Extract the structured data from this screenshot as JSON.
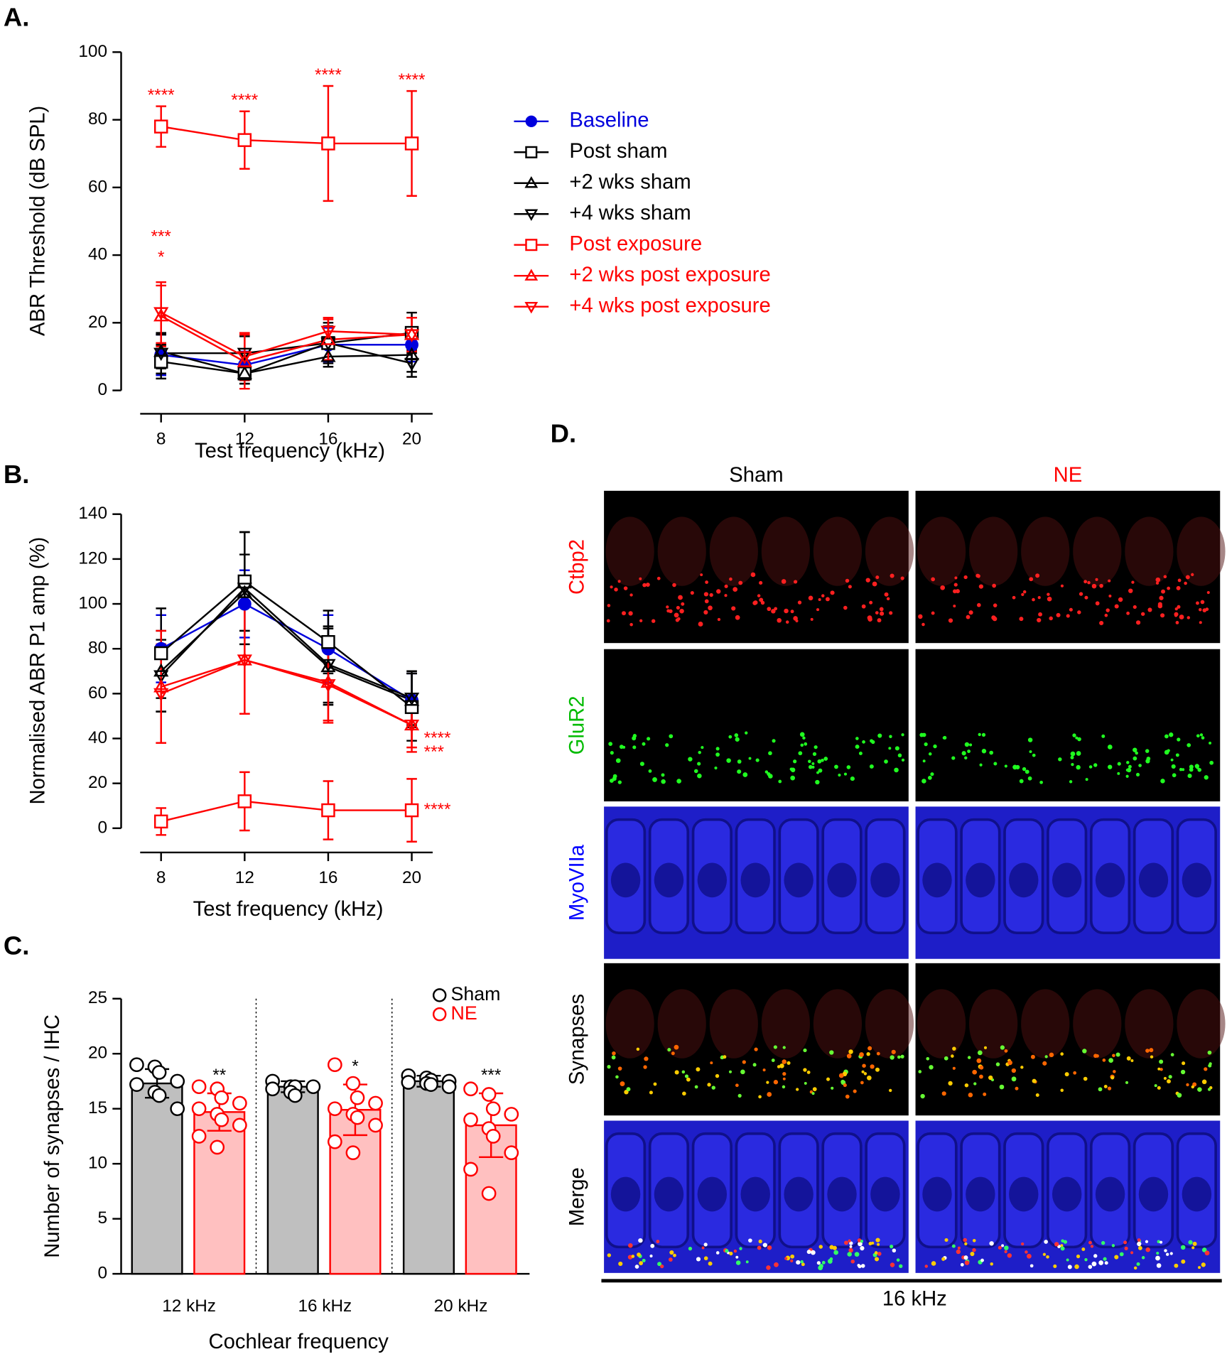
{
  "chart_data": [
    {
      "type": "line",
      "panel_label": "A.",
      "y_label": "ABR Threshold (dB SPL)",
      "x_label": "Test frequency (kHz)",
      "x": [
        8,
        12,
        16,
        20
      ],
      "xlim": [
        7,
        21
      ],
      "xticks": [
        8,
        12,
        16,
        20
      ],
      "ylim": [
        0,
        100
      ],
      "yticks": [
        0,
        20,
        40,
        60,
        80,
        100
      ],
      "legend": "right",
      "series": [
        {
          "name": "Baseline",
          "color": "#0000dd",
          "marker": "circle-filled",
          "values": [
            10.5,
            7.5,
            13.5,
            13.5
          ],
          "errors": [
            6,
            4,
            5,
            5
          ]
        },
        {
          "name": "Post sham",
          "color": "#000000",
          "marker": "square",
          "values": [
            8.5,
            5,
            14,
            17
          ],
          "errors": [
            5,
            3,
            6,
            6
          ]
        },
        {
          "name": "+2 wks sham",
          "color": "#000000",
          "marker": "triangle-up",
          "values": [
            11.5,
            5,
            10,
            10.5
          ],
          "errors": [
            5,
            3,
            3,
            5
          ]
        },
        {
          "name": "+4 wks sham",
          "color": "#000000",
          "marker": "triangle-down",
          "values": [
            11,
            11,
            14,
            8
          ],
          "errors": [
            6,
            5,
            5,
            4
          ]
        },
        {
          "name": "Post exposure",
          "color": "#ff0000",
          "marker": "square",
          "values": [
            78,
            74,
            73,
            73
          ],
          "errors": [
            6,
            8.5,
            17,
            15.5
          ],
          "annotations": [
            "****",
            "****",
            "****",
            "****"
          ],
          "annotation_position": "above"
        },
        {
          "name": "+2 wks post exposure",
          "color": "#ff0000",
          "marker": "triangle-up",
          "values": [
            22,
            8.5,
            15,
            16.5
          ],
          "errors": [
            9,
            8,
            6,
            5
          ],
          "annotations": [
            "*",
            null,
            null,
            null
          ],
          "annotation_position": "above"
        },
        {
          "name": "+4 wks post exposure",
          "color": "#ff0000",
          "marker": "triangle-down",
          "values": [
            23,
            10,
            17.5,
            16.5
          ],
          "errors": [
            9,
            7,
            4,
            5
          ],
          "annotations": [
            "***",
            null,
            null,
            null
          ],
          "annotation_position": "above"
        }
      ]
    },
    {
      "type": "line",
      "panel_label": "B.",
      "y_label": "Normalised ABR P1 amp (%)",
      "x_label": "Test frequency (kHz)",
      "x": [
        8,
        12,
        16,
        20
      ],
      "xlim": [
        7,
        21
      ],
      "xticks": [
        8,
        12,
        16,
        20
      ],
      "ylim": [
        0,
        140
      ],
      "yticks": [
        0,
        20,
        40,
        60,
        80,
        100,
        120,
        140
      ],
      "series": [
        {
          "name": "Baseline",
          "color": "#0000dd",
          "marker": "circle-filled",
          "values": [
            80,
            100,
            80,
            57
          ],
          "errors": [
            15,
            15,
            15,
            12
          ]
        },
        {
          "name": "Post sham",
          "color": "#000000",
          "marker": "square",
          "values": [
            78,
            110,
            83,
            54
          ],
          "errors": [
            20,
            22,
            14,
            15
          ]
        },
        {
          "name": "+2 wks sham",
          "color": "#000000",
          "marker": "triangle-up",
          "values": [
            70,
            105,
            72,
            57
          ],
          "errors": [
            18,
            17,
            17,
            12
          ]
        },
        {
          "name": "+4 wks sham",
          "color": "#000000",
          "marker": "triangle-down",
          "values": [
            68,
            107,
            73,
            58
          ],
          "errors": [
            16,
            25,
            17,
            12
          ]
        },
        {
          "name": "Post exposure",
          "color": "#ff0000",
          "marker": "square",
          "values": [
            3,
            12,
            8,
            8
          ],
          "errors": [
            6,
            13,
            13,
            14
          ],
          "annotations": [
            null,
            null,
            null,
            "****"
          ],
          "annotation_position": "right"
        },
        {
          "name": "+2 wks post exposure",
          "color": "#ff0000",
          "marker": "triangle-up",
          "values": [
            63,
            75,
            65,
            46
          ],
          "errors": [
            25,
            24,
            17,
            12
          ],
          "annotations": [
            null,
            null,
            null,
            "****"
          ],
          "annotation_position": "right"
        },
        {
          "name": "+4 wks post exposure",
          "color": "#ff0000",
          "marker": "triangle-down",
          "values": [
            60,
            75,
            64,
            46
          ],
          "errors": [
            22,
            24,
            17,
            10
          ],
          "annotations": [
            null,
            null,
            null,
            "***"
          ],
          "annotation_position": "right"
        }
      ]
    },
    {
      "type": "bar",
      "panel_label": "C.",
      "y_label": "Number of synapses / IHC",
      "x_label": "Cochlear frequency",
      "categories": [
        "12 kHz",
        "16 kHz",
        "20 kHz"
      ],
      "ylim": [
        0,
        25
      ],
      "yticks": [
        0,
        5,
        10,
        15,
        20,
        25
      ],
      "legend": "top-right",
      "series": [
        {
          "name": "Sham",
          "color": "#000000",
          "fill": "#bfbfbf",
          "values": [
            17.3,
            17.0,
            17.5
          ],
          "errors": [
            1.3,
            0.5,
            0.5
          ],
          "points": [
            [
              19,
              18.8,
              18.3,
              17.5,
              17.2,
              16.5,
              16.2,
              15
            ],
            [
              17.5,
              17,
              17,
              17,
              16.8,
              16.5,
              16.2
            ],
            [
              18,
              17.8,
              17.6,
              17.5,
              17.4,
              17.3,
              17.2,
              17
            ]
          ]
        },
        {
          "name": "NE",
          "color": "#ff0000",
          "fill": "#ffc0c0",
          "values": [
            14.7,
            14.9,
            13.5
          ],
          "errors": [
            1.7,
            2.3,
            2.9
          ],
          "points": [
            [
              17,
              16.8,
              16,
              15.5,
              15,
              14.5,
              14,
              13.5,
              12.5,
              11.5
            ],
            [
              19,
              17.3,
              16,
              15.5,
              15,
              14.5,
              14.2,
              13.5,
              12,
              11
            ],
            [
              16.8,
              16.3,
              15,
              14.5,
              14,
              13.2,
              12.5,
              11,
              9.5,
              7.3
            ]
          ],
          "annotations": [
            "**",
            "*",
            "***"
          ],
          "annotation_position": "above"
        }
      ]
    }
  ],
  "panel_d": {
    "panel_label": "D.",
    "columns": [
      "Sham",
      "NE"
    ],
    "rows": [
      "Ctbp2",
      "GluR2",
      "MyoVIIa",
      "Synapses",
      "Merge"
    ],
    "row_colors": [
      "#ff0000",
      "#00bb00",
      "#0000ff",
      "#000000",
      "#000000"
    ],
    "column_colors": [
      "#000000",
      "#ff0000"
    ],
    "footer": "16 kHz"
  }
}
